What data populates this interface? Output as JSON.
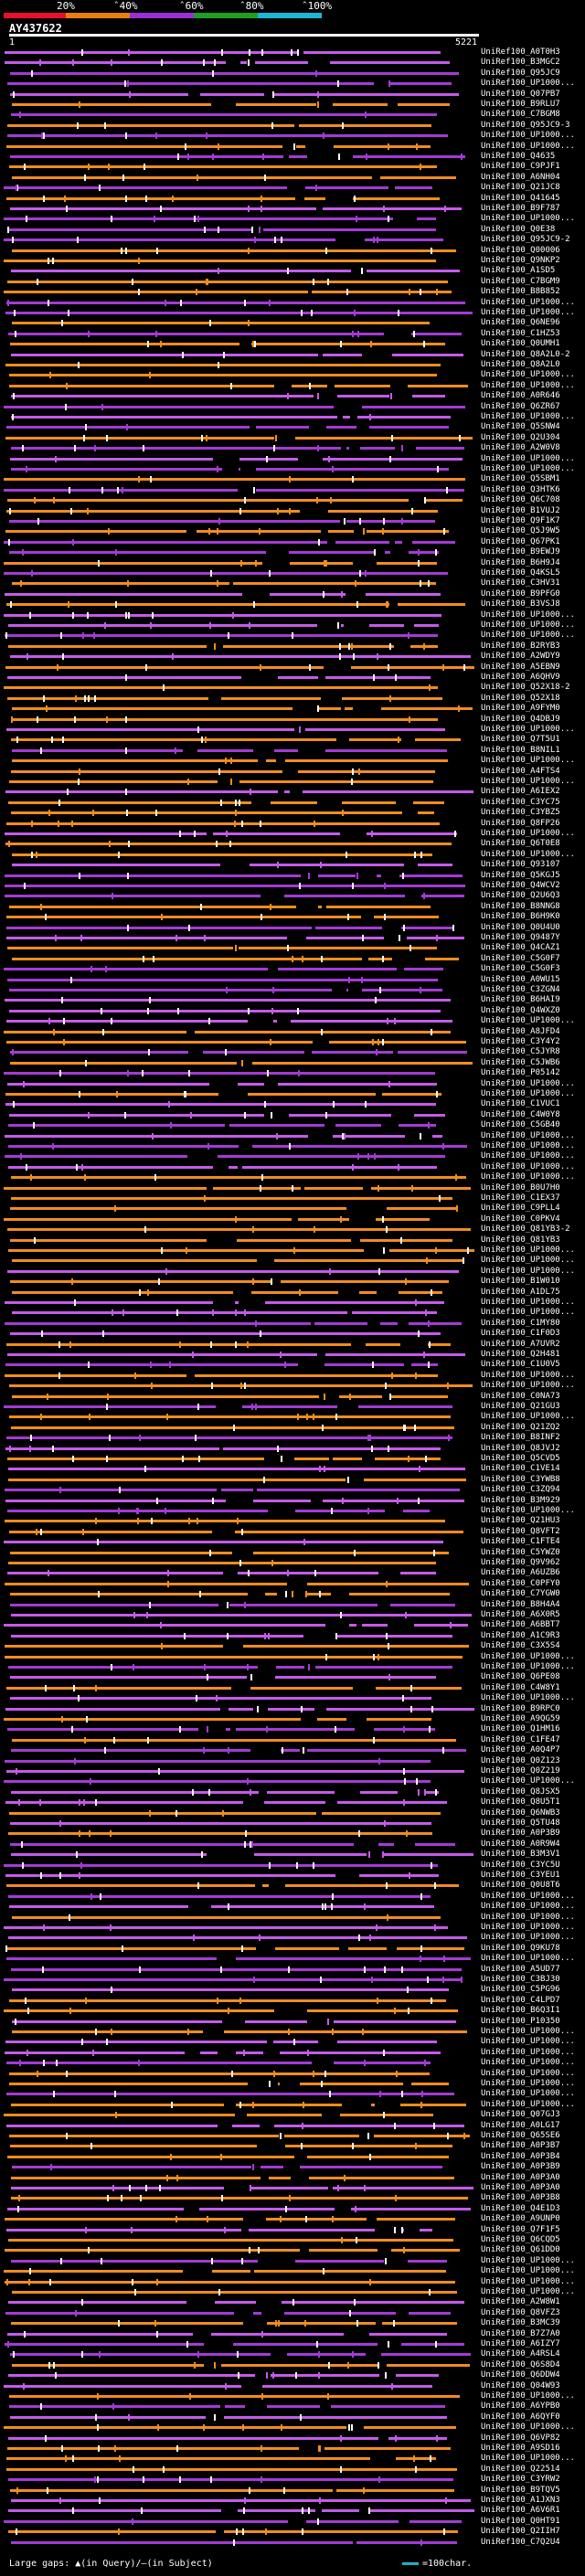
{
  "scale": {
    "labels": [
      "20%",
      "ˆ40%",
      "ˆ60%",
      "ˆ80%",
      "ˆ100%"
    ],
    "colors": [
      "#e8102a",
      "#e87e10",
      "#9b2fd6",
      "#1f9e22",
      "#19b7d6"
    ]
  },
  "query": {
    "id": "AY437622",
    "start": "1",
    "end": "5221"
  },
  "hits": [
    "UniRef100_A0T0H3",
    "UniRef100_B3MGC2",
    "UniRef100_Q95JC9",
    "UniRef100_UP1000...",
    "UniRef100_Q07PB7",
    "UniRef100_B9RLU7",
    "UniRef100_C7BGM8",
    "UniRef100_Q95JC9-3",
    "UniRef100_UP1000...",
    "UniRef100_UP1000...",
    "UniRef100_Q4635",
    "UniRef100_C9PJF1",
    "UniRef100_A6NH04",
    "UniRef100_Q21JC8",
    "UniRef100_Q41645",
    "UniRef100_B9F787",
    "UniRef100_UP1000...",
    "UniRef100_Q0E38",
    "UniRef100_Q95JC9-2",
    "UniRef100_Q00006",
    "UniRef100_Q9NKP2",
    "UniRef100_A1SD5",
    "UniRef100_C7BGM9",
    "UniRef100_B8B852",
    "UniRef100_UP1000...",
    "UniRef100_UP1000...",
    "UniRef100_Q6NE96",
    "UniRef100_C1HZ53",
    "UniRef100_Q0UMH1",
    "UniRef100_Q8A2L0-2",
    "UniRef100_Q8A2L0",
    "UniRef100_UP1000...",
    "UniRef100_UP1000...",
    "UniRef100_A0R646",
    "UniRef100_Q6ZR67",
    "UniRef100_UP1000...",
    "UniRef100_Q5SNW4",
    "UniRef100_Q2U304",
    "UniRef100_A2W0V8",
    "UniRef100_UP1000...",
    "UniRef100_UP1000...",
    "UniRef100_Q5SBM1",
    "UniRef100_Q3HTK6",
    "UniRef100_Q6C708",
    "UniRef100_B1VUJ2",
    "UniRef100_Q9F1K7",
    "UniRef100_Q5J9W5",
    "UniRef100_Q67PK1",
    "UniRef100_B9EWJ9",
    "UniRef100_B6H9J4",
    "UniRef100_Q4KSL5",
    "UniRef100_C3HV31",
    "UniRef100_B9PFG0",
    "UniRef100_B3VSJ8",
    "UniRef100_UP1000...",
    "UniRef100_UP1000...",
    "UniRef100_UP1000...",
    "UniRef100_B2RYB3",
    "UniRef100_A2WDY9",
    "UniRef100_A5EBN9",
    "UniRef100_A6QHV9",
    "UniRef100_Q52X18-2",
    "UniRef100_Q52X18",
    "UniRef100_A9FYM0",
    "UniRef100_Q4DBJ9",
    "UniRef100_UP1000...",
    "UniRef100_Q7T5U1",
    "UniRef100_B8NIL1",
    "UniRef100_UP1000...",
    "UniRef100_A4FTS4",
    "UniRef100_UP1000...",
    "UniRef100_A6IEX2",
    "UniRef100_C3YC75",
    "UniRef100_C3YBZ5",
    "UniRef100_Q8FP26",
    "UniRef100_UP1000...",
    "UniRef100_Q6T0E8",
    "UniRef100_UP1000...",
    "UniRef100_Q93107",
    "UniRef100_Q5KGJ5",
    "UniRef100_Q4WCV2",
    "UniRef100_Q2U6Q3",
    "UniRef100_B8NNG8",
    "UniRef100_B6H9K0",
    "UniRef100_Q0U4U0",
    "UniRef100_Q9487Y",
    "UniRef100_Q4CAZ1",
    "UniRef100_C5G0F7",
    "UniRef100_C5G0F3",
    "UniRef100_A0WU15",
    "UniRef100_C3ZGN4",
    "UniRef100_B6HAI9",
    "UniRef100_Q4WXZ0",
    "UniRef100_UP1000...",
    "UniRef100_A8JFD4",
    "UniRef100_C3Y4Y2",
    "UniRef100_C5JYR8",
    "UniRef100_C5JWB6",
    "UniRef100_P05142",
    "UniRef100_UP1000...",
    "UniRef100_UP1000...",
    "UniRef100_C1VUC1",
    "UniRef100_C4W0Y8",
    "UniRef100_C5GB40",
    "UniRef100_UP1000...",
    "UniRef100_UP1000...",
    "UniRef100_UP1000...",
    "UniRef100_UP1000...",
    "UniRef100_UP1000...",
    "UniRef100_B0U7H0",
    "UniRef100_C1EX37",
    "UniRef100_C9PLL4",
    "UniRef100_C0PKV4",
    "UniRef100_Q81YB3-2",
    "UniRef100_Q81YB3",
    "UniRef100_UP1000...",
    "UniRef100_UP1000...",
    "UniRef100_UP1000...",
    "UniRef100_B1W010",
    "UniRef100_A1DL75",
    "UniRef100_UP1000...",
    "UniRef100_UP1000...",
    "UniRef100_C1MY80",
    "UniRef100_C1F0D3",
    "UniRef100_A7UVR2",
    "UniRef100_Q2H481",
    "UniRef100_C1U0V5",
    "UniRef100_UP1000...",
    "UniRef100_UP1000...",
    "UniRef100_C0NA73",
    "UniRef100_Q21GU3",
    "UniRef100_UP1000...",
    "UniRef100_Q21ZQ2",
    "UniRef100_B8INF2",
    "UniRef100_Q8JVJ2",
    "UniRef100_Q5CVD5",
    "UniRef100_C1VE14",
    "UniRef100_C3YWB8",
    "UniRef100_C3ZQ94",
    "UniRef100_B3M929",
    "UniRef100_UP1000...",
    "UniRef100_Q21HU3",
    "UniRef100_Q8VFT2",
    "UniRef100_C1FTE4",
    "UniRef100_C5YWZ0",
    "UniRef100_Q9V962",
    "UniRef100_A6UZB6",
    "UniRef100_C0PFY0",
    "UniRef100_C7YGW0",
    "UniRef100_B8H4A4",
    "UniRef100_A6X0R5",
    "UniRef100_A6BBT7",
    "UniRef100_A1C9R3",
    "UniRef100_C3X5S4",
    "UniRef100_UP1000...",
    "UniRef100_UP1000...",
    "UniRef100_Q6PE08",
    "UniRef100_C4W8Y1",
    "UniRef100_UP1000...",
    "UniRef100_B9RPC0",
    "UniRef100_A9QG59",
    "UniRef100_Q1HM16",
    "UniRef100_C1FE47",
    "UniRef100_A0Q4P7",
    "UniRef100_Q0Z123",
    "UniRef100_Q0Z219",
    "UniRef100_UP1000...",
    "UniRef100_Q8JSX5",
    "UniRef100_Q8U5T1",
    "UniRef100_Q6NWB3",
    "UniRef100_Q5TU48",
    "UniRef100_A0P3B9",
    "UniRef100_A0R9W4",
    "UniRef100_B3M3V1",
    "UniRef100_C3YC5U",
    "UniRef100_C3YEU1",
    "UniRef100_Q0U8T6",
    "UniRef100_UP1000...",
    "UniRef100_UP1000...",
    "UniRef100_UP1000...",
    "UniRef100_UP1000...",
    "UniRef100_UP1000...",
    "UniRef100_Q9KU78",
    "UniRef100_UP1000...",
    "UniRef100_A5UD77",
    "UniRef100_C3BJ30",
    "UniRef100_C5PG96",
    "UniRef100_C4LPD7",
    "UniRef100_B6Q3I1",
    "UniRef100_P10350",
    "UniRef100_UP1000...",
    "UniRef100_UP1000...",
    "UniRef100_UP1000...",
    "UniRef100_UP1000...",
    "UniRef100_UP1000...",
    "UniRef100_UP1000...",
    "UniRef100_UP1000...",
    "UniRef100_UP1000...",
    "UniRef100_Q07GJ3",
    "UniRef100_A0LG17",
    "UniRef100_Q65SE6",
    "UniRef100_A0P3B7",
    "UniRef100_A0P3B4",
    "UniRef100_A0P3B9",
    "UniRef100_A0P3A0",
    "UniRef100_A0P3A0",
    "UniRef100_A0P3B8",
    "UniRef100_Q4E1D3",
    "UniRef100_A9UNP0",
    "UniRef100_Q7F1F5",
    "UniRef100_Q6CQD5",
    "UniRef100_Q61DD0",
    "UniRef100_UP1000...",
    "UniRef100_UP1000...",
    "UniRef100_UP1000...",
    "UniRef100_UP1000...",
    "UniRef100_A2W8W1",
    "UniRef100_Q8VFZ3",
    "UniRef100_B3MC39",
    "UniRef100_B7Z7A0",
    "UniRef100_A6IZY7",
    "UniRef100_A4RSL4",
    "UniRef100_Q6S8D4",
    "UniRef100_Q6DDW4",
    "UniRef100_Q04W93",
    "UniRef100_UP1000...",
    "UniRef100_A6YPB0",
    "UniRef100_A6QYF0",
    "UniRef100_UP1000...",
    "UniRef100_Q6VP82",
    "UniRef100_A9SD16",
    "UniRef100_UP1000...",
    "UniRef100_Q22514",
    "UniRef100_C3YRW2",
    "UniRef100_B9TQV5",
    "UniRef100_A1JXN3",
    "UniRef100_A6V6R1",
    "UniRef100_Q0HT91",
    "UniRef100_Q2IIH7",
    "UniRef100_C7Q2U4"
  ],
  "legend": {
    "left": "Large gaps: ▲(in Query)/—(in Subject)",
    "right": "=100char."
  },
  "colors": {
    "orange": "#f28c1e",
    "purple": "#a43ad6",
    "magenta": "#c55aea",
    "tick": "#ffffff",
    "teal": "#14b4c4"
  }
}
